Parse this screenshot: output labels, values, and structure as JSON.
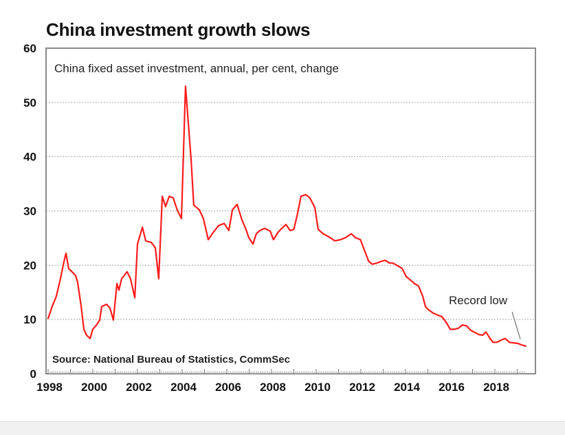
{
  "chart_data": {
    "type": "line",
    "title": "China investment growth slows",
    "subtitle": "China fixed asset investment, annual, per cent, change",
    "source": "Source: National Bureau of Statistics, CommSec",
    "xlabel": "",
    "ylabel": "",
    "xlim": [
      1998,
      2019.3
    ],
    "ylim": [
      0,
      60
    ],
    "yticks": [
      0,
      10,
      20,
      30,
      40,
      50,
      60
    ],
    "xticks": [
      1998,
      2000,
      2002,
      2004,
      2006,
      2008,
      2010,
      2012,
      2014,
      2016,
      2018
    ],
    "grid": "horizontal-dotted",
    "line_color": "#ff1a1a",
    "annotation": {
      "text": "Record low",
      "x": 2019.2,
      "y": 5.1
    },
    "series": [
      {
        "name": "China fixed asset investment growth",
        "x": [
          1998.0,
          1998.18,
          1998.37,
          1998.55,
          1998.71,
          1998.8,
          1998.92,
          1999.23,
          1999.32,
          1999.48,
          1999.6,
          1999.72,
          1999.88,
          2000.0,
          2000.15,
          2000.31,
          2000.4,
          2000.62,
          2000.77,
          2000.92,
          2001.08,
          2001.17,
          2001.29,
          2001.54,
          2001.69,
          2001.88,
          2002.0,
          2002.22,
          2002.37,
          2002.62,
          2002.8,
          2002.95,
          2003.11,
          2003.26,
          2003.42,
          2003.6,
          2003.78,
          2003.97,
          2004.15,
          2004.4,
          2004.52,
          2004.77,
          2004.95,
          2005.17,
          2005.38,
          2005.63,
          2005.88,
          2006.09,
          2006.25,
          2006.46,
          2006.68,
          2006.86,
          2006.98,
          2007.17,
          2007.32,
          2007.48,
          2007.69,
          2007.94,
          2008.09,
          2008.28,
          2008.46,
          2008.65,
          2008.83,
          2009.0,
          2009.17,
          2009.32,
          2009.54,
          2009.72,
          2009.94,
          2010.09,
          2010.31,
          2010.62,
          2010.83,
          2011.08,
          2011.32,
          2011.57,
          2011.75,
          2011.98,
          2012.23,
          2012.35,
          2012.51,
          2012.72,
          2012.9,
          2013.09,
          2013.28,
          2013.43,
          2013.65,
          2013.85,
          2014.03,
          2014.18,
          2014.4,
          2014.58,
          2014.77,
          2014.89,
          2015.02,
          2015.23,
          2015.45,
          2015.63,
          2015.85,
          2016.0,
          2016.18,
          2016.37,
          2016.55,
          2016.74,
          2016.92,
          2017.11,
          2017.29,
          2017.45,
          2017.6,
          2017.75,
          2017.91,
          2018.09,
          2018.28,
          2018.46,
          2018.65,
          2018.83,
          2019.02,
          2019.2,
          2019.38
        ],
        "values": [
          10.2,
          12.4,
          14.3,
          17.5,
          20.7,
          22.2,
          19.4,
          18.1,
          16.9,
          12.4,
          8.2,
          7.1,
          6.5,
          8.2,
          8.9,
          9.9,
          12.4,
          12.8,
          12.1,
          9.9,
          16.6,
          15.4,
          17.5,
          18.8,
          17.5,
          14.0,
          23.9,
          27.0,
          24.5,
          24.2,
          23.2,
          17.5,
          32.7,
          30.8,
          32.7,
          32.4,
          30.2,
          28.6,
          53.0,
          39.5,
          31.1,
          30.2,
          28.6,
          24.7,
          26.0,
          27.3,
          27.7,
          26.4,
          30.2,
          31.2,
          28.3,
          26.6,
          25.1,
          23.9,
          25.8,
          26.4,
          26.8,
          26.3,
          24.7,
          26.0,
          26.8,
          27.5,
          26.4,
          26.6,
          29.6,
          32.7,
          33.0,
          32.4,
          30.6,
          26.6,
          25.8,
          25.1,
          24.5,
          24.7,
          25.1,
          25.8,
          25.1,
          24.7,
          22.0,
          20.7,
          20.2,
          20.4,
          20.7,
          20.9,
          20.4,
          20.4,
          19.9,
          19.4,
          17.9,
          17.4,
          16.6,
          16.2,
          14.3,
          12.4,
          11.8,
          11.2,
          10.8,
          10.5,
          9.3,
          8.2,
          8.2,
          8.4,
          9.0,
          8.8,
          8.0,
          7.6,
          7.2,
          7.1,
          7.7,
          6.7,
          5.8,
          5.8,
          6.2,
          6.5,
          5.8,
          5.7,
          5.6,
          5.3,
          5.1
        ]
      }
    ]
  }
}
